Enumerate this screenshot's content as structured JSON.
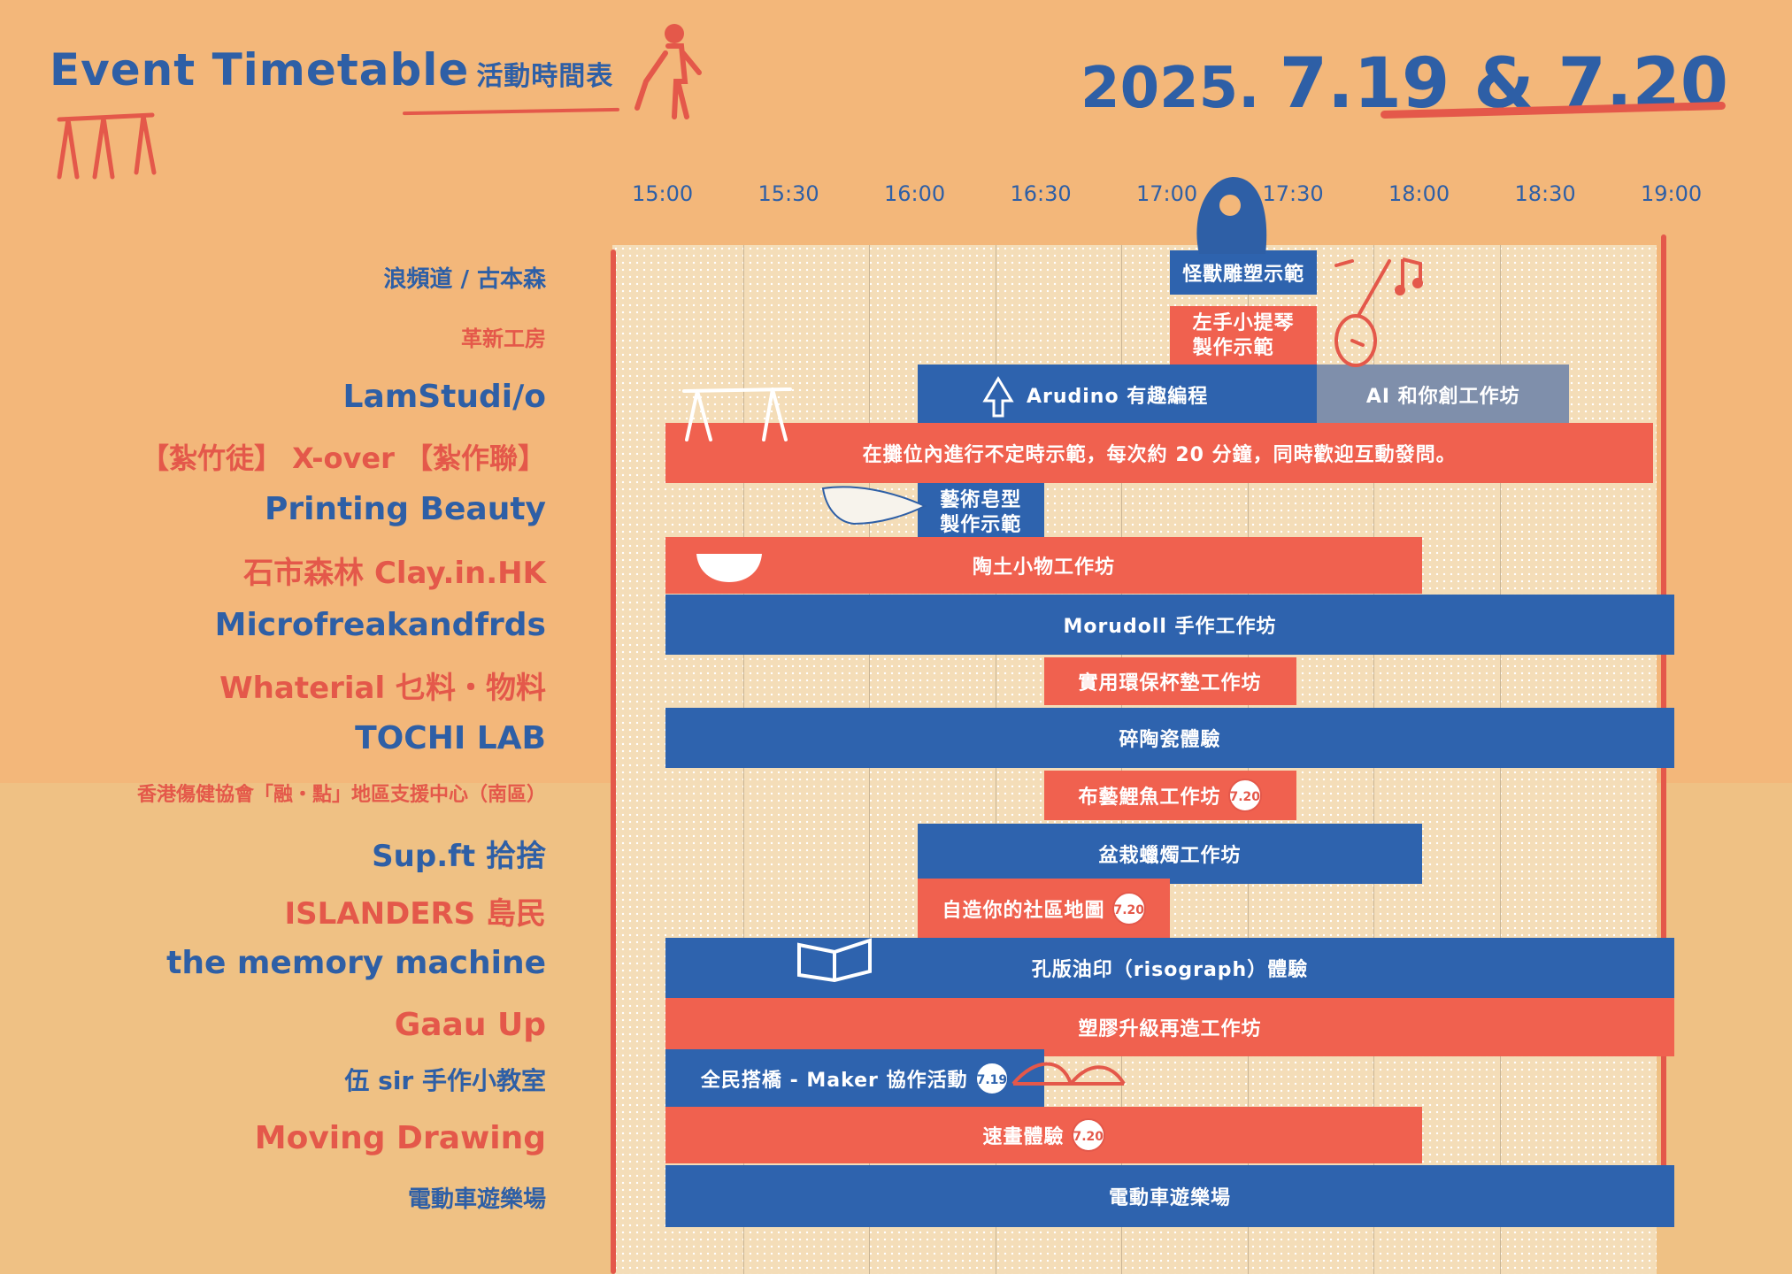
{
  "header": {
    "title_en": "Event Timetable",
    "title_zh": "活動時間表",
    "date_year": "2025.",
    "date_days": "7.19 & 7.20"
  },
  "timeline": {
    "times": [
      "15:00",
      "15:30",
      "16:00",
      "16:30",
      "17:00",
      "17:30",
      "18:00",
      "18:30",
      "19:00"
    ]
  },
  "rows": [
    {
      "label": "浪頻道 / 古本森"
    },
    {
      "label": "革新工房"
    },
    {
      "label": "LamStudi/o"
    },
    {
      "label": "【紮竹徒】 X-over 【紮作聯】"
    },
    {
      "label": "Printing Beauty"
    },
    {
      "label": "石市森林 Clay.in.HK"
    },
    {
      "label": "Microfreakandfrds"
    },
    {
      "label": "Whaterial 乜料・物料"
    },
    {
      "label": "TOCHI LAB"
    },
    {
      "label": "香港傷健協會「融・點」地區支援中心（南區）"
    },
    {
      "label": "Sup.ft 拾捨"
    },
    {
      "label": "ISLANDERS 島民"
    },
    {
      "label": "the memory machine"
    },
    {
      "label": "Gaau Up"
    },
    {
      "label": "伍 sir 手作小教室"
    },
    {
      "label": "Moving Drawing"
    },
    {
      "label": "電動車遊樂場"
    }
  ],
  "sessions": [
    {
      "label": "怪獸雕塑示範",
      "start": "17:00",
      "end": "17:35"
    },
    {
      "label": "左手小提琴製作示範",
      "line1": "左手小提琴",
      "line2": "製作示範",
      "start": "17:00",
      "end": "17:35"
    },
    {
      "label": "Arudino 有趣編程",
      "start": "16:00",
      "end": "17:35"
    },
    {
      "label": "AI 和你創工作坊",
      "start": "17:35",
      "end": "18:35"
    },
    {
      "label": "在攤位內進行不定時示範，每次約 20 分鐘，同時歡迎互動發問。",
      "start": "15:00",
      "end": "18:55"
    },
    {
      "label": "藝術皂型製作示範",
      "line1": "藝術皂型",
      "line2": "製作示範",
      "start": "16:00",
      "end": "16:30"
    },
    {
      "label": "陶土小物工作坊",
      "start": "15:00",
      "end": "18:00"
    },
    {
      "label": "Morudoll 手作工作坊",
      "start": "15:00",
      "end": "19:00"
    },
    {
      "label": "實用環保杯墊工作坊",
      "start": "16:30",
      "end": "17:30"
    },
    {
      "label": "碎陶瓷體驗",
      "start": "15:00",
      "end": "19:00"
    },
    {
      "label": "布藝鯉魚工作坊",
      "start": "16:30",
      "end": "17:30",
      "badge": "7.20"
    },
    {
      "label": "盆栽蠟燭工作坊",
      "start": "16:00",
      "end": "18:00"
    },
    {
      "label": "自造你的社區地圖",
      "start": "16:00",
      "end": "17:00",
      "badge": "7.20"
    },
    {
      "label": "孔版油印（risograph）體驗",
      "start": "15:00",
      "end": "19:00"
    },
    {
      "label": "塑膠升級再造工作坊",
      "start": "15:00",
      "end": "19:00"
    },
    {
      "label": "全民搭橋 - Maker 協作活動",
      "start": "15:00",
      "end": "16:30",
      "badge": "7.19"
    },
    {
      "label": "速畫體驗",
      "start": "15:00",
      "end": "18:00",
      "badge": "7.20"
    },
    {
      "label": "電動車遊樂場",
      "start": "15:00",
      "end": "19:00"
    }
  ],
  "colors": {
    "blue": "#2e63ae",
    "red": "#f0614f",
    "paper": "#f3b77a"
  }
}
